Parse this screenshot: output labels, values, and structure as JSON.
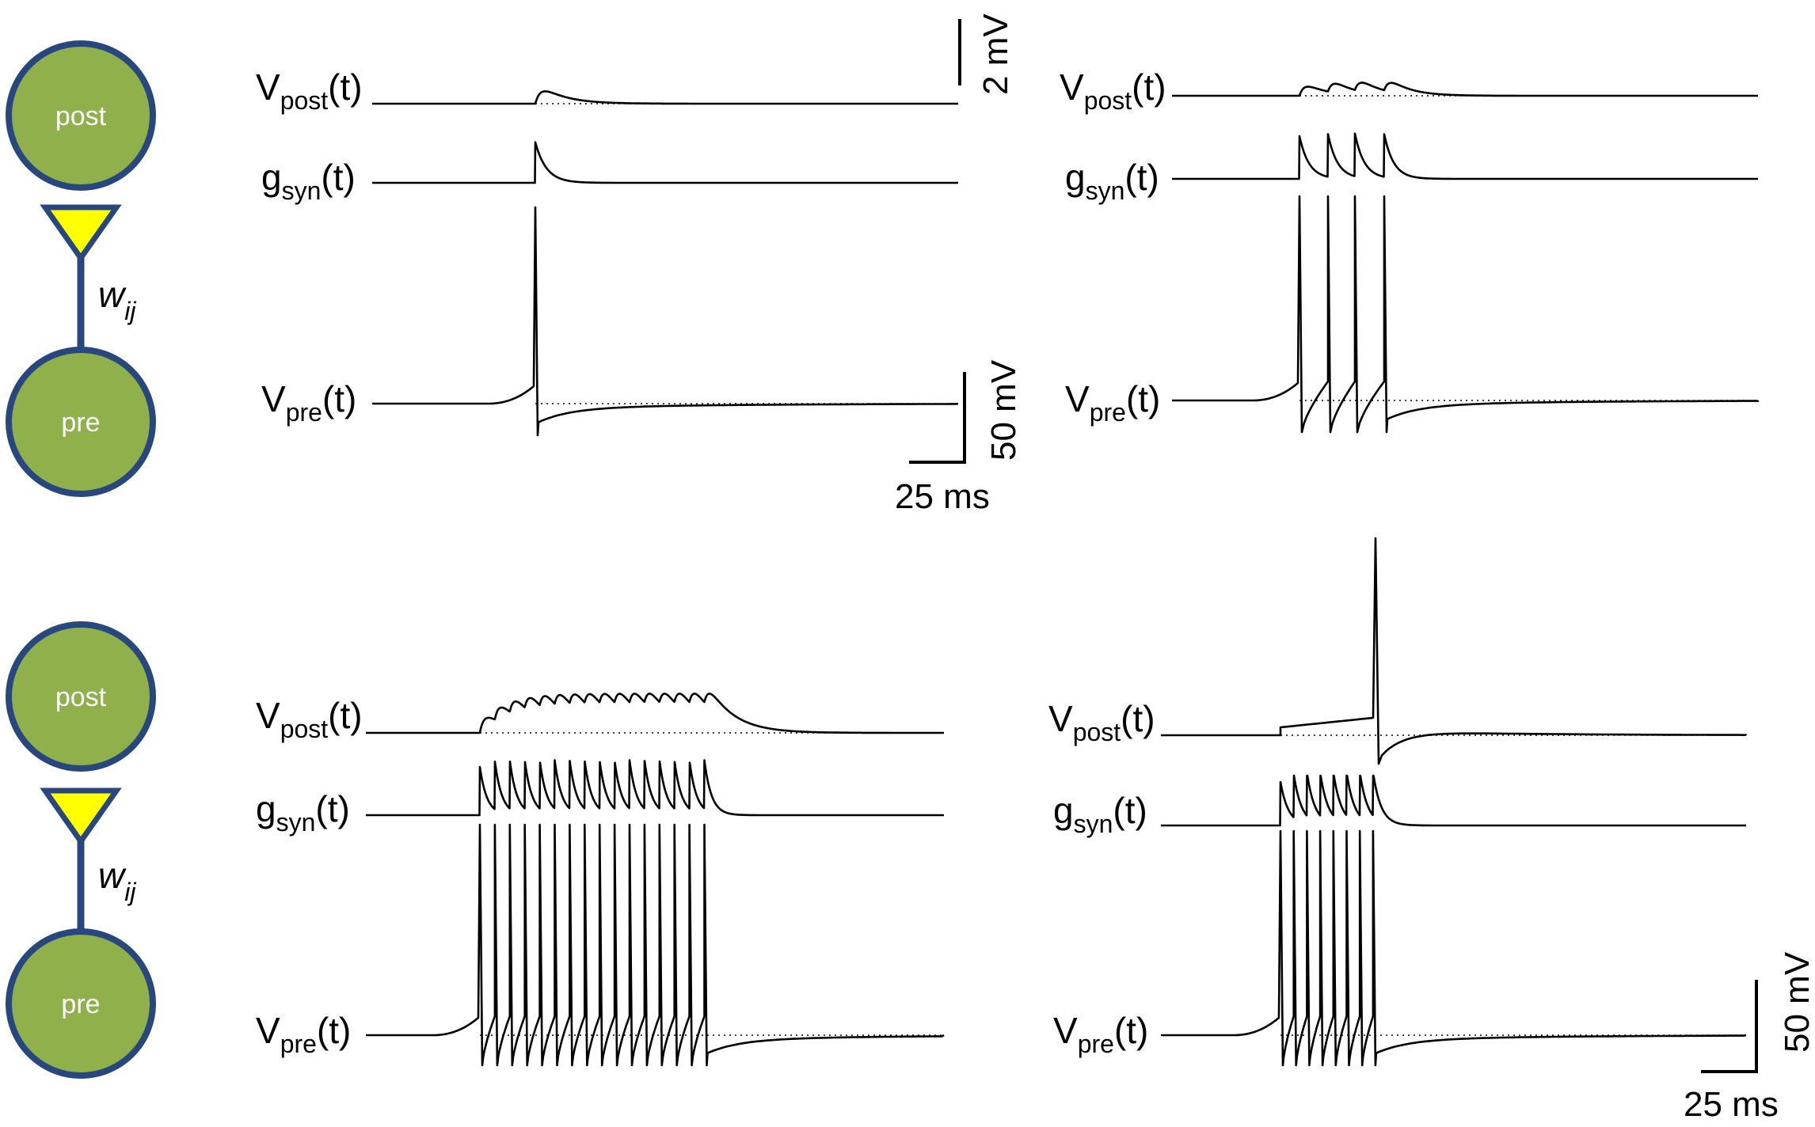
{
  "cells": {
    "post": "post",
    "pre": "pre"
  },
  "weight": {
    "base": "w",
    "sub": "ij"
  },
  "traces": {
    "v_post": {
      "base": "V",
      "sub": "post",
      "arg": "(t)"
    },
    "g_syn": {
      "base": "g",
      "sub": "syn",
      "arg": "(t)"
    },
    "v_pre": {
      "base": "V",
      "sub": "pre",
      "arg": "(t)"
    }
  },
  "scales": {
    "post_voltage": "2 mV",
    "pre_voltage": "50 mV",
    "time": "25 ms"
  },
  "colors": {
    "cell_fill": "#8fb04a",
    "cell_stroke": "#28477f",
    "synapse_fill": "#ffff00"
  },
  "panels": [
    {
      "id": "single-spike",
      "spikes": 1,
      "post_response": "epsp"
    },
    {
      "id": "short-burst",
      "spikes": 4,
      "post_response": "epsp-summation"
    },
    {
      "id": "long-train",
      "spikes": 16,
      "post_response": "epsp-plateau"
    },
    {
      "id": "dense-burst",
      "spikes": 8,
      "post_response": "action-potential"
    }
  ]
}
